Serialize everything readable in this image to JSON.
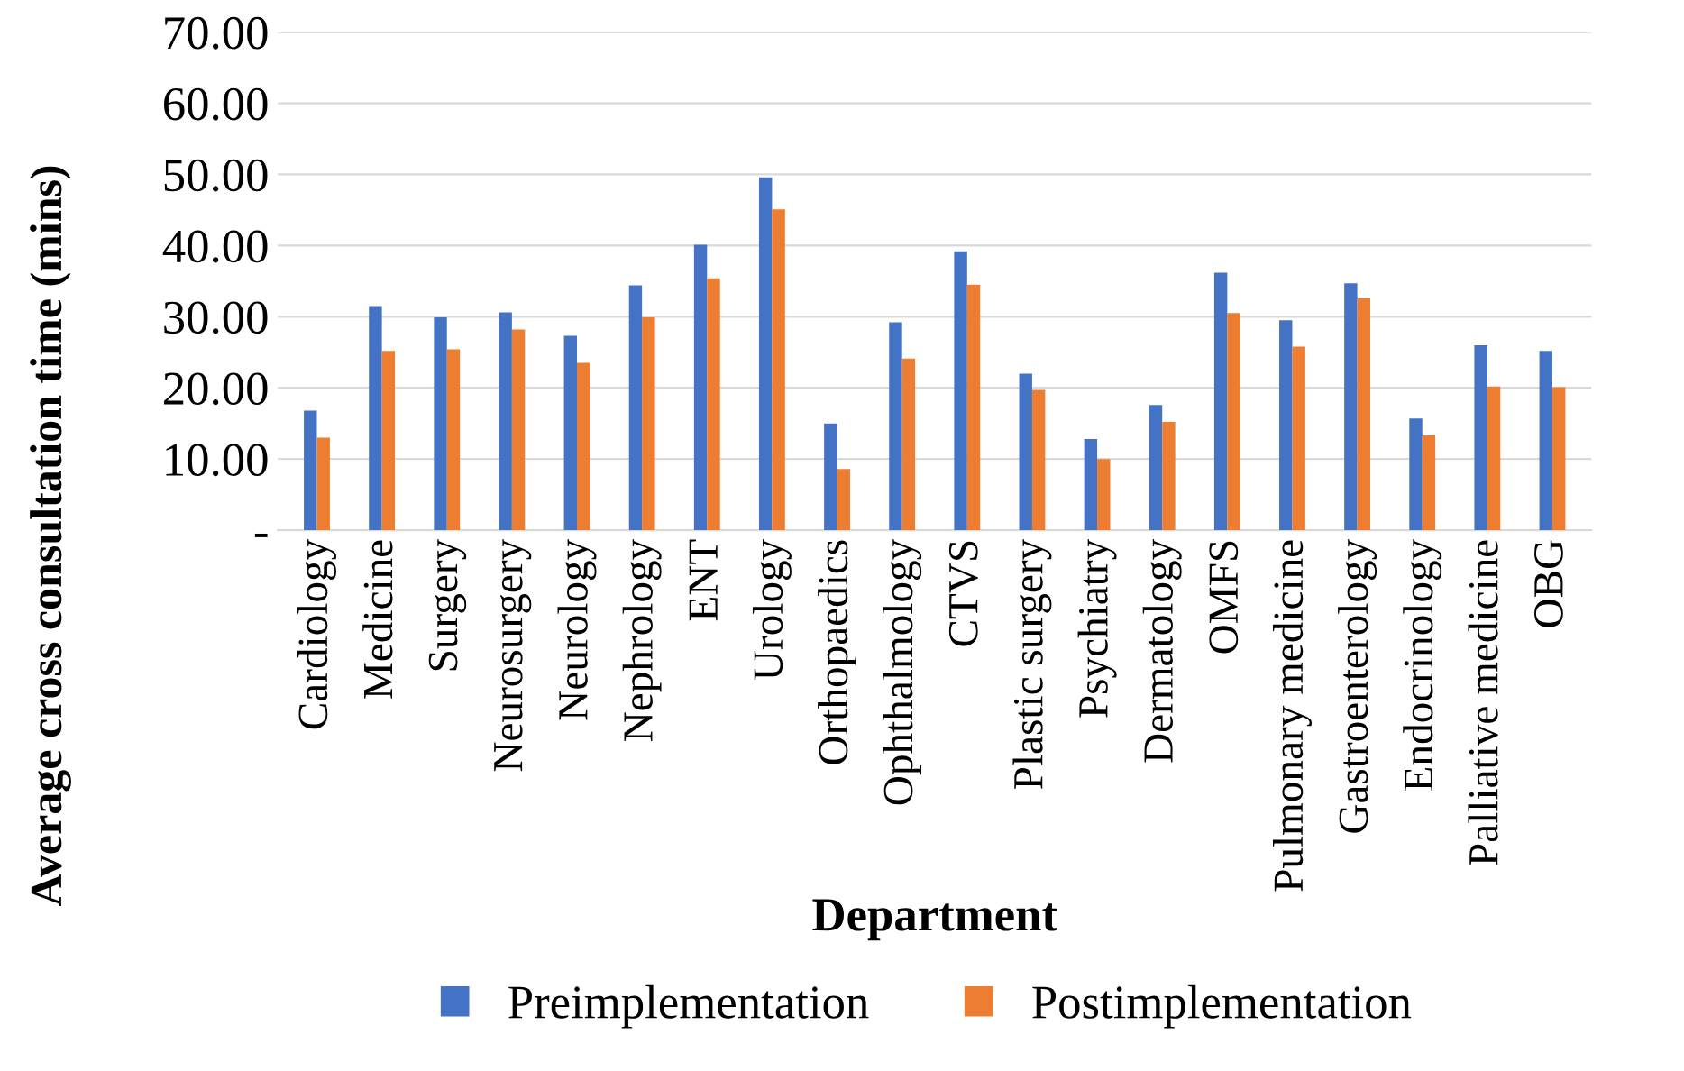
{
  "chart_data": {
    "type": "bar",
    "xlabel": "Department",
    "ylabel": "Average cross consultation time (mins)",
    "categories": [
      "Cardiology",
      "Medicine",
      "Surgery",
      "Neurosurgery",
      "Neurology",
      "Nephrology",
      "ENT",
      "Urology",
      "Orthopaedics",
      "Ophthalmology",
      "CTVS",
      "Plastic surgery",
      "Psychiatry",
      "Dermatology",
      "OMFS",
      "Pulmonary medicine",
      "Gastroenterology",
      "Endocrinology",
      "Palliative medicine",
      "OBG"
    ],
    "series": [
      {
        "name": "Preimplementation",
        "color": "#4472c4",
        "values": [
          16.8,
          31.5,
          29.9,
          30.6,
          27.3,
          34.4,
          40.1,
          49.6,
          15.0,
          29.2,
          39.2,
          22.0,
          12.8,
          17.6,
          36.2,
          29.5,
          34.7,
          15.7,
          26.0,
          25.2
        ]
      },
      {
        "name": "Postimplementation",
        "color": "#ed7d31",
        "values": [
          13.0,
          25.2,
          25.4,
          28.2,
          23.5,
          29.9,
          35.4,
          45.1,
          8.6,
          24.1,
          34.5,
          19.7,
          10.0,
          15.2,
          30.5,
          25.8,
          32.6,
          13.3,
          20.2,
          20.1
        ]
      }
    ],
    "ylim": [
      0,
      70
    ],
    "yticks": [
      {
        "value": 0,
        "label": "-"
      },
      {
        "value": 10,
        "label": "10.00"
      },
      {
        "value": 20,
        "label": "20.00"
      },
      {
        "value": 30,
        "label": "30.00"
      },
      {
        "value": 40,
        "label": "40.00"
      },
      {
        "value": 50,
        "label": "50.00"
      },
      {
        "value": 60,
        "label": "60.00"
      },
      {
        "value": 70,
        "label": "70.00"
      }
    ],
    "grid": "y",
    "legend": "bottom"
  }
}
